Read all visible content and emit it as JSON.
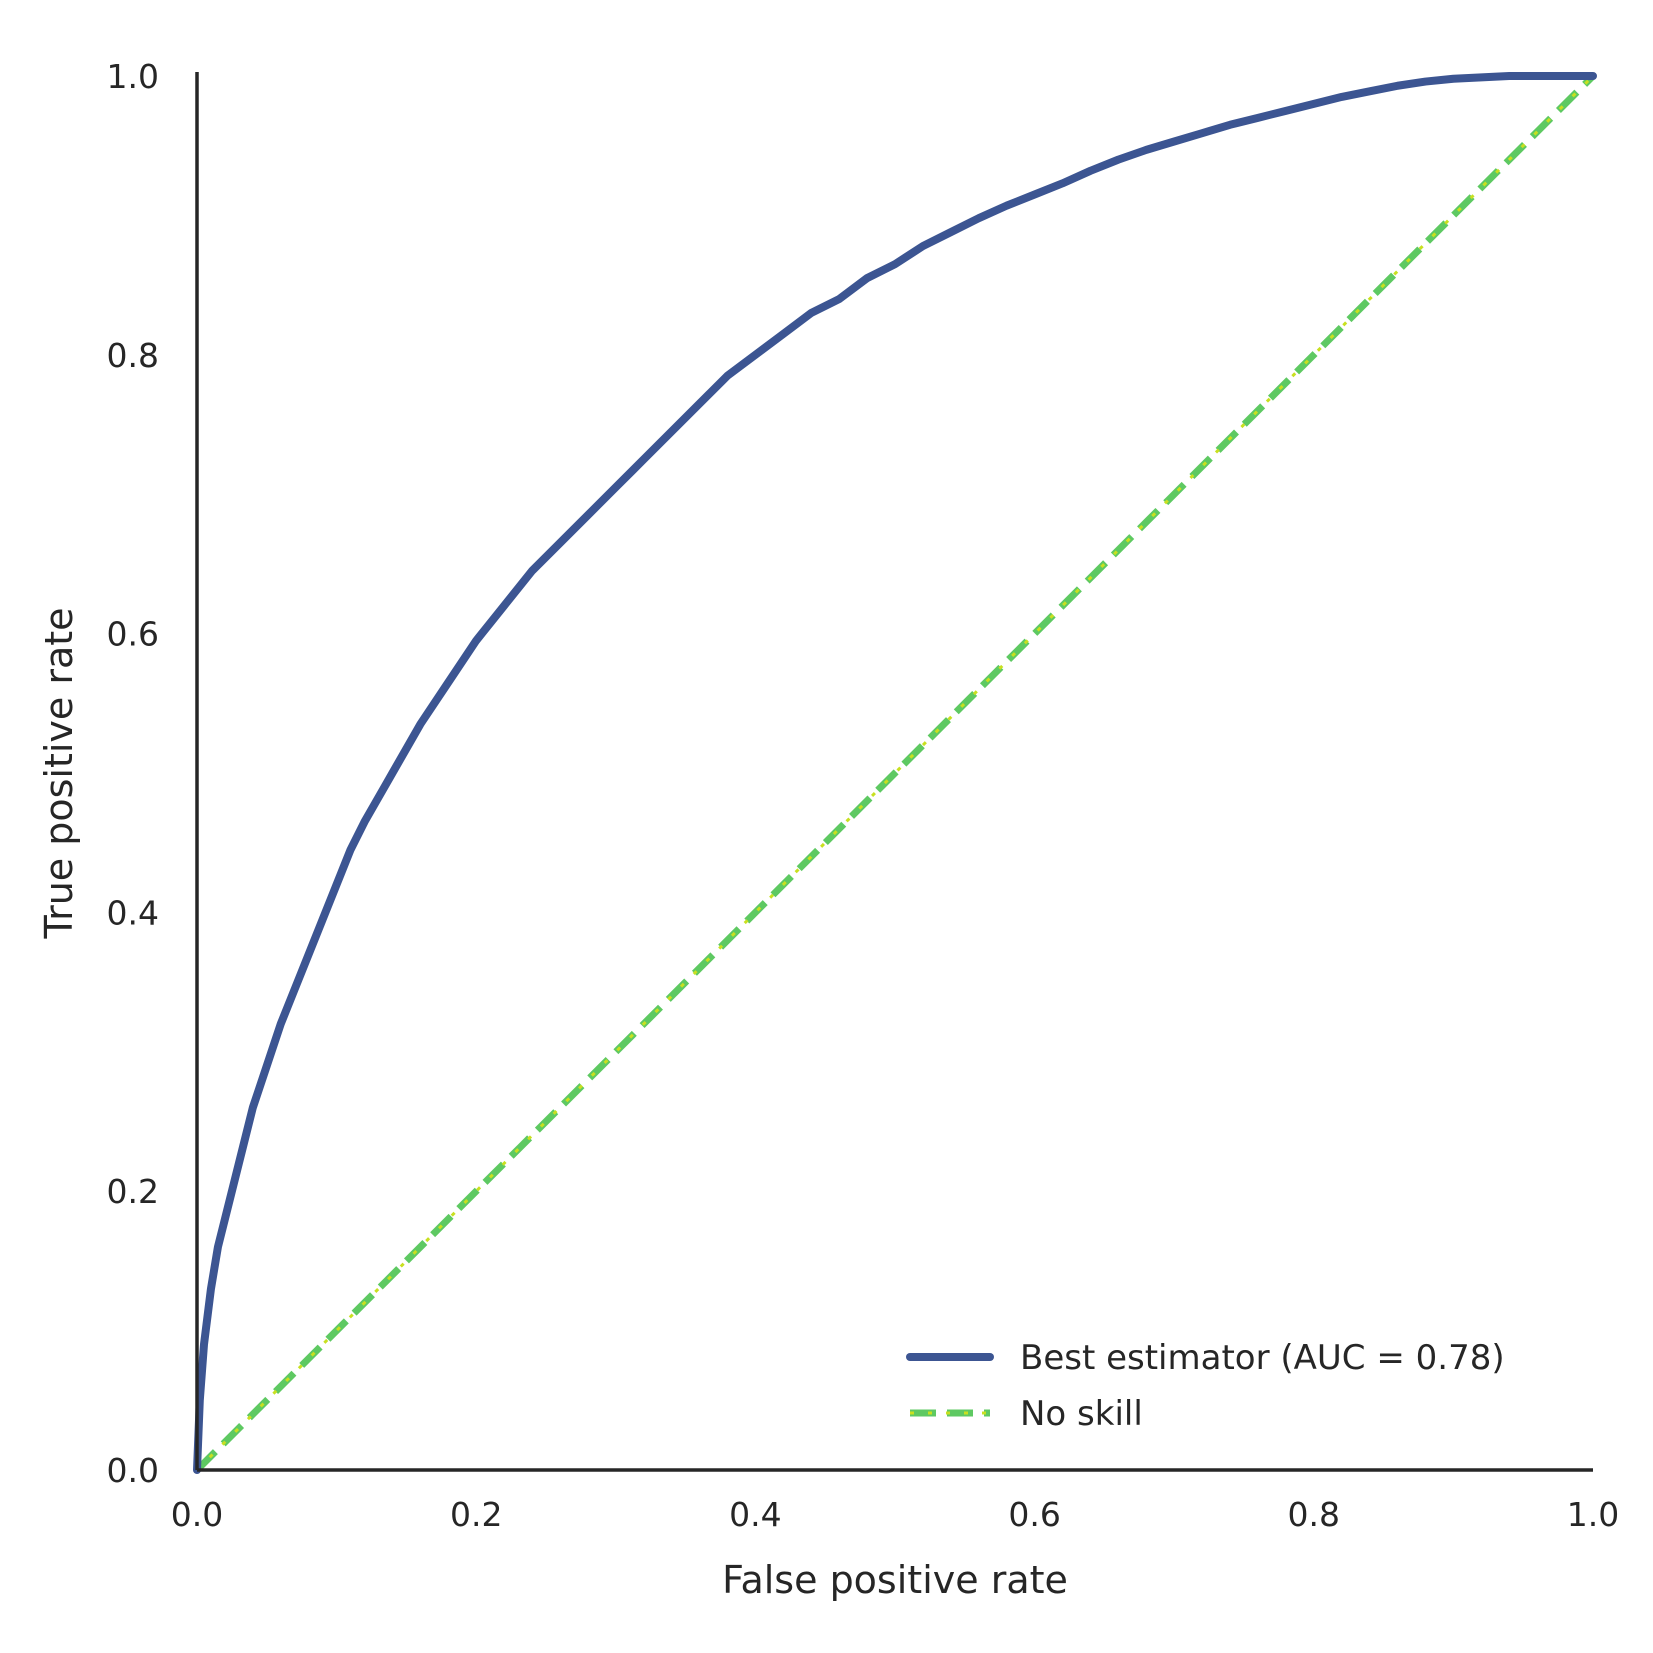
{
  "chart_data": {
    "type": "line",
    "title": "",
    "xlabel": "False positive rate",
    "ylabel": "True positive rate",
    "xlim": [
      0.0,
      1.0
    ],
    "ylim": [
      0.0,
      1.0
    ],
    "x_ticks": [
      "0.0",
      "0.2",
      "0.4",
      "0.6",
      "0.8",
      "1.0"
    ],
    "y_ticks": [
      "0.0",
      "0.2",
      "0.4",
      "0.6",
      "0.8",
      "1.0"
    ],
    "grid": false,
    "legend_position": "lower-right",
    "series": [
      {
        "name": "Best estimator (AUC = 0.78)",
        "color": "#3c5592",
        "style": "solid",
        "points": [
          [
            0.0,
            0.0
          ],
          [
            0.002,
            0.05
          ],
          [
            0.005,
            0.09
          ],
          [
            0.01,
            0.13
          ],
          [
            0.015,
            0.16
          ],
          [
            0.02,
            0.18
          ],
          [
            0.03,
            0.22
          ],
          [
            0.04,
            0.26
          ],
          [
            0.05,
            0.29
          ],
          [
            0.06,
            0.32
          ],
          [
            0.07,
            0.345
          ],
          [
            0.08,
            0.37
          ],
          [
            0.09,
            0.395
          ],
          [
            0.1,
            0.42
          ],
          [
            0.11,
            0.445
          ],
          [
            0.12,
            0.465
          ],
          [
            0.14,
            0.5
          ],
          [
            0.16,
            0.535
          ],
          [
            0.18,
            0.565
          ],
          [
            0.2,
            0.595
          ],
          [
            0.22,
            0.62
          ],
          [
            0.24,
            0.645
          ],
          [
            0.26,
            0.665
          ],
          [
            0.28,
            0.685
          ],
          [
            0.3,
            0.705
          ],
          [
            0.32,
            0.725
          ],
          [
            0.34,
            0.745
          ],
          [
            0.36,
            0.765
          ],
          [
            0.38,
            0.785
          ],
          [
            0.4,
            0.8
          ],
          [
            0.42,
            0.815
          ],
          [
            0.44,
            0.83
          ],
          [
            0.46,
            0.84
          ],
          [
            0.48,
            0.855
          ],
          [
            0.5,
            0.865
          ],
          [
            0.52,
            0.878
          ],
          [
            0.54,
            0.888
          ],
          [
            0.56,
            0.898
          ],
          [
            0.58,
            0.907
          ],
          [
            0.6,
            0.915
          ],
          [
            0.62,
            0.923
          ],
          [
            0.64,
            0.932
          ],
          [
            0.66,
            0.94
          ],
          [
            0.68,
            0.947
          ],
          [
            0.7,
            0.953
          ],
          [
            0.72,
            0.959
          ],
          [
            0.74,
            0.965
          ],
          [
            0.76,
            0.97
          ],
          [
            0.78,
            0.975
          ],
          [
            0.8,
            0.98
          ],
          [
            0.82,
            0.985
          ],
          [
            0.84,
            0.989
          ],
          [
            0.86,
            0.993
          ],
          [
            0.88,
            0.996
          ],
          [
            0.9,
            0.998
          ],
          [
            0.92,
            0.999
          ],
          [
            0.94,
            1.0
          ],
          [
            0.97,
            1.0
          ],
          [
            1.0,
            1.0
          ]
        ]
      },
      {
        "name": "No skill",
        "color": "#5ec962",
        "style": "dashed",
        "points": [
          [
            0.0,
            0.0
          ],
          [
            1.0,
            1.0
          ]
        ]
      }
    ],
    "annotations": []
  },
  "colors": {
    "axis": "#262626",
    "inner_dotted_line": "#c8e020"
  }
}
